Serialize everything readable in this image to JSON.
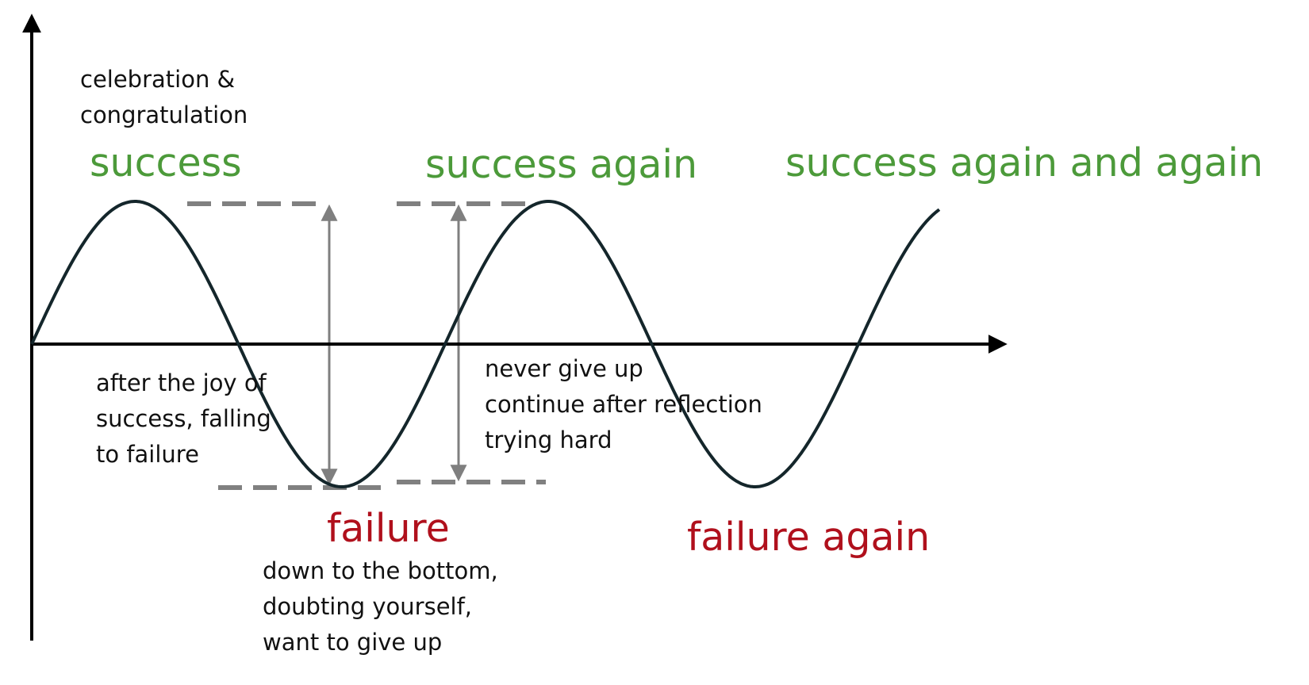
{
  "colors": {
    "success": "#4c9a3a",
    "failure": "#b0101c",
    "curve": "#14262b",
    "axis": "#000000",
    "guide": "#7f7f7f",
    "dash": "#808080"
  },
  "labels": {
    "celebration": [
      "celebration &",
      "congratulation"
    ],
    "success": "success",
    "success_again": "success again",
    "success_again_and_again": "success again and again",
    "after_joy": [
      "after the joy of",
      "success, falling",
      "to failure"
    ],
    "never_give_up": [
      "never give up",
      "continue after reflection",
      "trying hard"
    ],
    "failure": "failure",
    "failure_desc": [
      "down to the bottom,",
      "doubting yourself,",
      "want to give up"
    ],
    "failure_again": "failure again"
  }
}
